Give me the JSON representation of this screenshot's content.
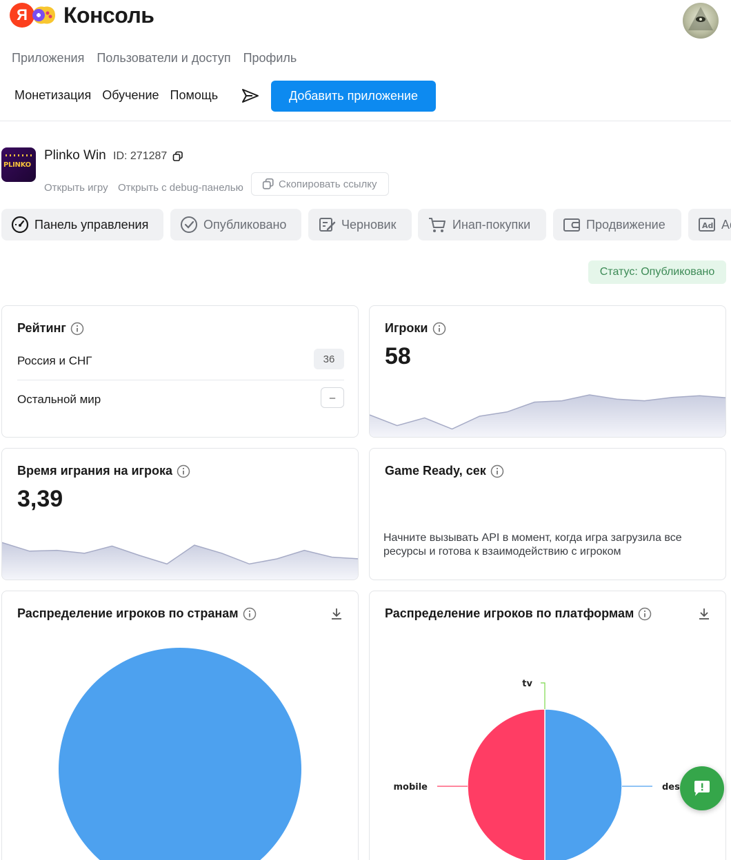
{
  "brand": {
    "logo_letter": "Я",
    "title": "Консоль"
  },
  "nav_primary": [
    "Приложения",
    "Пользователи и доступ",
    "Профиль"
  ],
  "nav_secondary": [
    "Монетизация",
    "Обучение",
    "Помощь"
  ],
  "add_app_label": "Добавить приложение",
  "app": {
    "icon_text": "PLINKO",
    "name": "Plinko Win",
    "id_label": "ID: 271287",
    "open_game": "Открыть игру",
    "open_debug": "Открыть с debug-панелью",
    "copy_link": "Скопировать ссылку"
  },
  "tabs": [
    {
      "label": "Панель управления",
      "icon": "speedometer-icon",
      "active": true
    },
    {
      "label": "Опубликовано",
      "icon": "check-circle-icon",
      "active": false
    },
    {
      "label": "Черновик",
      "icon": "edit-draft-icon",
      "active": false
    },
    {
      "label": "Инап-покупки",
      "icon": "cart-icon",
      "active": false
    },
    {
      "label": "Продвижение",
      "icon": "wallet-icon",
      "active": false
    },
    {
      "label": "Ad Р",
      "icon": "ad-icon",
      "active": false
    }
  ],
  "status": "Статус: Опубликовано",
  "cards": {
    "rating": {
      "title": "Рейтинг",
      "rows": [
        {
          "label": "Россия и СНГ",
          "value": "36"
        },
        {
          "label": "Остальной мир",
          "value": "–"
        }
      ]
    },
    "players": {
      "title": "Игроки",
      "value": "58",
      "trend": [
        0.45,
        0.2,
        0.38,
        0.12,
        0.42,
        0.52,
        0.75,
        0.78,
        0.92,
        0.82,
        0.78,
        0.86,
        0.9,
        0.85
      ]
    },
    "playtime": {
      "title": "Время играния на игрока",
      "value": "3,39",
      "trend": [
        0.8,
        0.6,
        0.62,
        0.55,
        0.72,
        0.5,
        0.3,
        0.74,
        0.55,
        0.3,
        0.42,
        0.62,
        0.46,
        0.42
      ]
    },
    "game_ready": {
      "title": "Game Ready, сек",
      "text": "Начните вызывать API в момент, когда игра загрузила все ресурсы и готова к взаимодействию с игроком"
    },
    "countries": {
      "title": "Распределение игроков по странам"
    },
    "platforms": {
      "title": "Распределение игроков по платформам"
    }
  },
  "chart_data": [
    {
      "type": "pie",
      "title": "Распределение игроков по странам",
      "categories": [
        ""
      ],
      "values": [
        100
      ],
      "colors": [
        "#4da1ef"
      ]
    },
    {
      "type": "pie",
      "title": "Распределение игроков по платформам",
      "categories": [
        "desktop",
        "mobile",
        "tv"
      ],
      "labels_visible": [
        "desk",
        "mobile",
        "tv"
      ],
      "values": [
        50,
        50,
        0
      ],
      "colors": [
        "#4da1ef",
        "#ff3d64",
        "#7bd84b"
      ]
    }
  ],
  "colors": {
    "accent": "#0d8af0",
    "status_bg": "#e5f6ea",
    "status_text": "#3c8a55",
    "feedback": "#35a64a"
  }
}
